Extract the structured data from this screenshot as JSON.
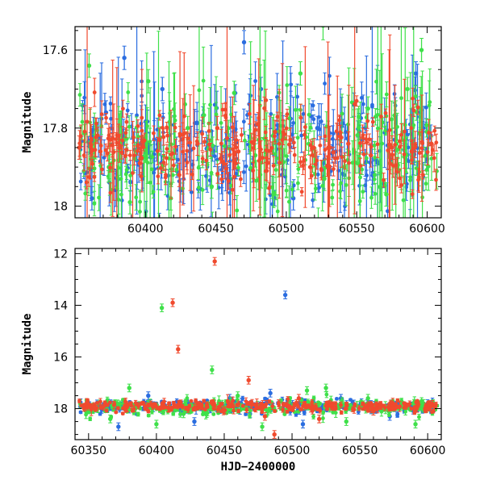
{
  "chart_data": [
    {
      "type": "scatter",
      "panel": "top",
      "title": "",
      "xlabel": "",
      "ylabel": "Magnitude",
      "xlim": [
        60350,
        60610
      ],
      "ylim": [
        17.54,
        18.03
      ],
      "y_inverted": true,
      "xticks": [
        "60400",
        "60450",
        "60500",
        "60550",
        "60600"
      ],
      "yticks": [
        "17.6",
        "17.8",
        "18"
      ],
      "grid": false,
      "legend": "none",
      "error_bars": true,
      "series": [
        {
          "color": "#2b6de0",
          "baseline": 17.85,
          "scatter": 0.07,
          "points": [
            [
              60362,
              17.98
            ],
            [
              60372,
              17.76
            ],
            [
              60385,
              17.62
            ],
            [
              60398,
              17.93
            ],
            [
              60412,
              17.7
            ],
            [
              60425,
              17.96
            ],
            [
              60440,
              17.81
            ],
            [
              60455,
              17.9
            ],
            [
              60470,
              17.58
            ],
            [
              60482,
              17.7
            ],
            [
              60497,
              17.92
            ],
            [
              60505,
              17.98
            ],
            [
              60522,
              17.8
            ],
            [
              60535,
              17.86
            ],
            [
              60548,
              17.74
            ],
            [
              60565,
              17.89
            ],
            [
              60577,
              17.83
            ],
            [
              60592,
              17.66
            ],
            [
              60600,
              17.88
            ]
          ]
        },
        {
          "color": "#3fe04a",
          "baseline": 17.86,
          "scatter": 0.08,
          "points": [
            [
              60360,
              17.64
            ],
            [
              60374,
              17.9
            ],
            [
              60389,
              17.99
            ],
            [
              60402,
              17.68
            ],
            [
              60418,
              17.98
            ],
            [
              60430,
              17.8
            ],
            [
              60447,
              17.95
            ],
            [
              60463,
              17.71
            ],
            [
              60478,
              17.87
            ],
            [
              60491,
              17.97
            ],
            [
              60510,
              17.66
            ],
            [
              60527,
              17.93
            ],
            [
              60541,
              17.9
            ],
            [
              60558,
              17.75
            ],
            [
              60571,
              17.97
            ],
            [
              60586,
              17.7
            ],
            [
              60596,
              17.6
            ]
          ]
        },
        {
          "color": "#f04a2e",
          "baseline": 17.85,
          "scatter": 0.05,
          "points": [
            [
              60353,
              17.85
            ],
            [
              60368,
              17.86
            ],
            [
              60381,
              17.82
            ],
            [
              60396,
              17.89
            ],
            [
              60410,
              17.83
            ],
            [
              60424,
              17.92
            ],
            [
              60437,
              17.84
            ],
            [
              60451,
              17.8
            ],
            [
              60466,
              17.86
            ],
            [
              60480,
              17.79
            ],
            [
              60492,
              17.81
            ],
            [
              60503,
              17.83
            ],
            [
              60517,
              17.9
            ],
            [
              60531,
              17.85
            ],
            [
              60544,
              17.84
            ],
            [
              60560,
              17.87
            ],
            [
              60575,
              17.85
            ],
            [
              60589,
              17.86
            ],
            [
              60603,
              17.84
            ]
          ]
        }
      ]
    },
    {
      "type": "scatter",
      "panel": "bottom",
      "title": "",
      "xlabel": "HJD−2400000",
      "ylabel": "Magnitude",
      "xlim": [
        60340,
        60610
      ],
      "ylim": [
        11.8,
        19.2
      ],
      "y_inverted": true,
      "xticks": [
        "60350",
        "60400",
        "60450",
        "60500",
        "60550",
        "60600"
      ],
      "yticks": [
        "12",
        "14",
        "16",
        "18"
      ],
      "grid": false,
      "legend": "none",
      "error_bars": true,
      "series": [
        {
          "color": "#2b6de0",
          "baseline": 17.9,
          "scatter": 0.12,
          "points": [
            [
              60372,
              18.7
            ],
            [
              60394,
              17.5
            ],
            [
              60428,
              18.5
            ],
            [
              60454,
              17.6
            ],
            [
              60469,
              18.2
            ],
            [
              60484,
              17.4
            ],
            [
              60495,
              13.6
            ],
            [
              60508,
              18.6
            ],
            [
              60536,
              17.6
            ],
            [
              60572,
              18.3
            ]
          ]
        },
        {
          "color": "#3fe04a",
          "baseline": 17.95,
          "scatter": 0.15,
          "points": [
            [
              60366,
              18.4
            ],
            [
              60380,
              17.2
            ],
            [
              60400,
              18.6
            ],
            [
              60404,
              14.1
            ],
            [
              60420,
              18.2
            ],
            [
              60441,
              16.5
            ],
            [
              60460,
              17.5
            ],
            [
              60478,
              18.7
            ],
            [
              60511,
              17.3
            ],
            [
              60525,
              17.2
            ],
            [
              60540,
              18.5
            ],
            [
              60556,
              17.6
            ],
            [
              60591,
              18.6
            ],
            [
              60597,
              17.8
            ]
          ]
        },
        {
          "color": "#f04a2e",
          "baseline": 17.9,
          "scatter": 0.1,
          "points": [
            [
              60412,
              13.9
            ],
            [
              60416,
              15.7
            ],
            [
              60443,
              12.3
            ],
            [
              60468,
              16.9
            ],
            [
              60480,
              18.3
            ],
            [
              60487,
              19.0
            ],
            [
              60505,
              17.6
            ],
            [
              60520,
              18.4
            ],
            [
              60560,
              18.1
            ]
          ]
        }
      ]
    }
  ]
}
